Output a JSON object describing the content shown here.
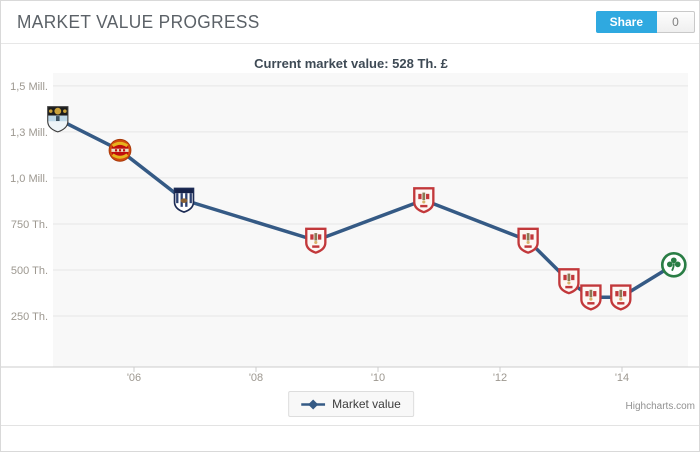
{
  "header": {
    "title": "MARKET VALUE PROGRESS",
    "share_label": "Share",
    "share_count": "0"
  },
  "credits": "Highcharts.com",
  "colors": {
    "line": "#355a85",
    "plot_bg": "#f8f8f8",
    "grid": "#e6e6e6",
    "axis_line": "#cccccc",
    "axis_label": "#9d9890",
    "title_text": "#3e4a55",
    "share_blue": "#2fa9e0"
  },
  "chart_data": {
    "type": "line",
    "title": "Current market value: 528 Th. £",
    "xlabel": "",
    "ylabel": "",
    "value_unit": "Th. £",
    "grid": "horizontal",
    "legend_position": "bottom-center",
    "xlim": [
      2004.67,
      2015.08
    ],
    "ylim": [
      0,
      1570
    ],
    "x_ticks": [
      {
        "year": 2006,
        "label": "'06"
      },
      {
        "year": 2008,
        "label": "'08"
      },
      {
        "year": 2010,
        "label": "'10"
      },
      {
        "year": 2012,
        "label": "'12"
      },
      {
        "year": 2014,
        "label": "'14"
      }
    ],
    "y_ticks": [
      {
        "value": 250,
        "label": "250 Th."
      },
      {
        "value": 500,
        "label": "500 Th."
      },
      {
        "value": 750,
        "label": "750 Th."
      },
      {
        "value": 1000,
        "label": "1,0 Mill."
      },
      {
        "value": 1250,
        "label": "1,3 Mill."
      },
      {
        "value": 1500,
        "label": "1,5 Mill."
      }
    ],
    "series": [
      {
        "name": "Market value",
        "color": "#355a85",
        "points": [
          {
            "date": 2004.75,
            "value": 1320,
            "crest": "coventry-city-crest"
          },
          {
            "date": 2005.77,
            "value": 1150,
            "crest": "manchester-united-crest"
          },
          {
            "date": 2006.82,
            "value": 880,
            "crest": "west-bromwich-albion-crest"
          },
          {
            "date": 2008.98,
            "value": 660,
            "crest": "barnsley-crest"
          },
          {
            "date": 2010.75,
            "value": 880,
            "crest": "barnsley-crest"
          },
          {
            "date": 2012.46,
            "value": 660,
            "crest": "barnsley-crest"
          },
          {
            "date": 2013.13,
            "value": 440,
            "crest": "barnsley-crest"
          },
          {
            "date": 2013.49,
            "value": 352,
            "crest": "barnsley-crest"
          },
          {
            "date": 2013.98,
            "value": 352,
            "crest": "barnsley-crest"
          },
          {
            "date": 2014.85,
            "value": 528,
            "crest": "panathinaikos-crest"
          }
        ]
      }
    ]
  }
}
